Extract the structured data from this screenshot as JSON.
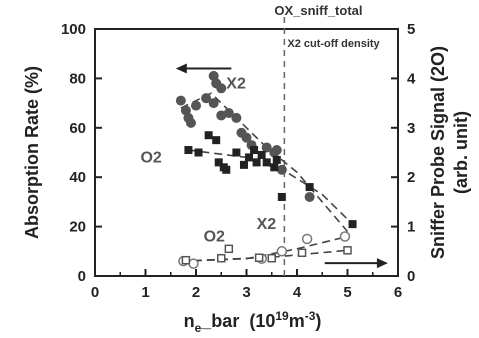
{
  "chart_data": {
    "type": "scatter",
    "xlabel_main": "n",
    "xlabel_sub": "e",
    "xlabel_rest": "_bar",
    "xlabel_units_open": "(10",
    "xlabel_units_exp1": "19",
    "xlabel_units_mid": "m",
    "xlabel_units_exp2": "-3",
    "xlabel_units_close": ")",
    "ylabel_left": "Absorption Rate (%)",
    "ylabel_right_line1": "Sniffer Probe Signal (2O)",
    "ylabel_right_line2": "(arb. unit)",
    "xlim": [
      0,
      6
    ],
    "ylim_left": [
      0,
      100
    ],
    "ylim_right": [
      0,
      5
    ],
    "x_ticks": [
      "0",
      "1",
      "2",
      "3",
      "4",
      "5",
      "6"
    ],
    "y_left_ticks": [
      "0",
      "20",
      "40",
      "60",
      "80",
      "100"
    ],
    "y_right_ticks": [
      "0",
      "1",
      "2",
      "3",
      "4",
      "5"
    ],
    "cutoff": {
      "x": 3.75,
      "label_top": "OX_sniff_total",
      "label": "X2 cut-off density"
    },
    "labels": {
      "x2_upper": "X2",
      "o2_upper": "O2",
      "x2_lower": "X2",
      "o2_lower": "O2"
    },
    "arrows": [
      {
        "direction": "left",
        "axis": "left"
      },
      {
        "direction": "right",
        "axis": "right"
      }
    ],
    "series": [
      {
        "marker": "filled-circle",
        "axis": "left",
        "points": [
          [
            1.7,
            71
          ],
          [
            1.8,
            67
          ],
          [
            1.85,
            64
          ],
          [
            1.9,
            62
          ],
          [
            2.0,
            69
          ],
          [
            2.2,
            72
          ],
          [
            2.35,
            81
          ],
          [
            2.4,
            78
          ],
          [
            2.5,
            76
          ],
          [
            2.35,
            70
          ],
          [
            2.5,
            65
          ],
          [
            2.65,
            66
          ],
          [
            2.8,
            64
          ],
          [
            2.9,
            58
          ],
          [
            3.0,
            56
          ],
          [
            3.1,
            53
          ],
          [
            3.4,
            52
          ],
          [
            3.55,
            50
          ],
          [
            3.6,
            51
          ],
          [
            3.7,
            43
          ],
          [
            4.25,
            32
          ]
        ]
      },
      {
        "marker": "filled-square",
        "axis": "left",
        "points": [
          [
            1.85,
            51
          ],
          [
            2.05,
            50
          ],
          [
            2.25,
            57
          ],
          [
            2.4,
            55
          ],
          [
            2.45,
            46
          ],
          [
            2.55,
            44
          ],
          [
            2.6,
            43
          ],
          [
            2.8,
            50
          ],
          [
            2.95,
            45
          ],
          [
            3.05,
            48
          ],
          [
            3.15,
            51
          ],
          [
            3.2,
            46
          ],
          [
            3.3,
            49
          ],
          [
            3.4,
            46
          ],
          [
            3.55,
            44
          ],
          [
            3.6,
            47
          ],
          [
            3.7,
            32
          ],
          [
            4.25,
            36
          ],
          [
            5.1,
            21
          ]
        ]
      },
      {
        "marker": "open-circle",
        "axis": "left",
        "points": [
          [
            1.75,
            6
          ],
          [
            1.95,
            5
          ],
          [
            3.3,
            7
          ],
          [
            3.7,
            10
          ],
          [
            4.2,
            15
          ],
          [
            4.95,
            16
          ]
        ]
      },
      {
        "marker": "open-square",
        "axis": "right",
        "points": [
          [
            1.8,
            0.32
          ],
          [
            2.5,
            0.36
          ],
          [
            2.65,
            0.55
          ],
          [
            3.25,
            0.37
          ],
          [
            3.5,
            0.36
          ],
          [
            4.1,
            0.47
          ],
          [
            5.0,
            0.52
          ]
        ]
      }
    ],
    "fit_lines": [
      {
        "axis": "left",
        "points": [
          [
            1.7,
            68
          ],
          [
            2.3,
            74
          ],
          [
            2.8,
            64
          ],
          [
            3.4,
            52
          ],
          [
            4.0,
            42
          ],
          [
            5.0,
            18
          ]
        ]
      },
      {
        "axis": "left",
        "points": [
          [
            1.85,
            51
          ],
          [
            3.0,
            48
          ],
          [
            3.8,
            42
          ],
          [
            4.5,
            33
          ],
          [
            5.1,
            21
          ]
        ]
      },
      {
        "axis": "left",
        "points": [
          [
            1.7,
            6
          ],
          [
            3.0,
            7
          ],
          [
            4.0,
            11
          ],
          [
            5.0,
            16
          ]
        ]
      },
      {
        "axis": "right",
        "points": [
          [
            1.7,
            0.3
          ],
          [
            3.5,
            0.38
          ],
          [
            5.0,
            0.52
          ]
        ]
      }
    ]
  }
}
